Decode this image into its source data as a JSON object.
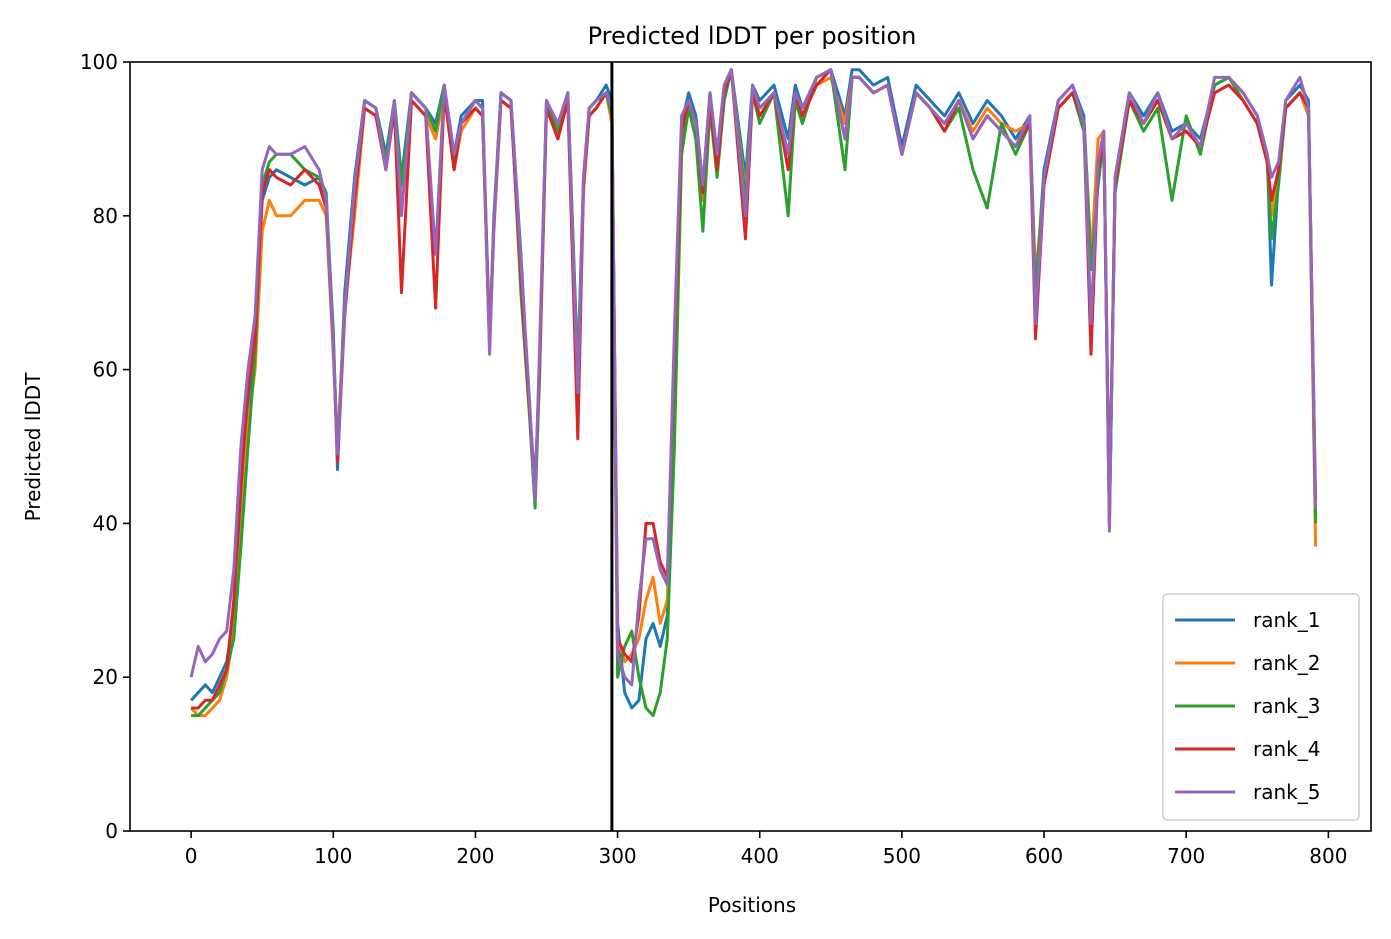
{
  "chart_data": {
    "type": "line",
    "title": "Predicted lDDT per position",
    "xlabel": "Positions",
    "ylabel": "Predicted lDDT",
    "xlim": [
      -43,
      830
    ],
    "ylim": [
      0,
      100
    ],
    "x_ticks": [
      0,
      100,
      200,
      300,
      400,
      500,
      600,
      700,
      800
    ],
    "y_ticks": [
      0,
      20,
      40,
      60,
      80,
      100
    ],
    "grid": false,
    "legend_position": "lower-right",
    "chain_break": 296,
    "colors": {
      "rank_1": "#1f77b4",
      "rank_2": "#ff7f0e",
      "rank_3": "#2ca02c",
      "rank_4": "#d62728",
      "rank_5": "#9467bd",
      "chain_break": "#000000"
    },
    "series": [
      {
        "name": "rank_1",
        "x": [
          0,
          5,
          10,
          15,
          20,
          25,
          30,
          35,
          40,
          45,
          50,
          55,
          60,
          70,
          80,
          90,
          95,
          100,
          103,
          108,
          115,
          122,
          130,
          137,
          143,
          148,
          155,
          165,
          172,
          178,
          185,
          190,
          200,
          205,
          210,
          213,
          218,
          225,
          232,
          238,
          242,
          245,
          250,
          258,
          265,
          272,
          276,
          280,
          285,
          292,
          296,
          300,
          305,
          310,
          315,
          320,
          325,
          330,
          335,
          340,
          345,
          350,
          355,
          360,
          365,
          370,
          375,
          380,
          390,
          395,
          400,
          410,
          420,
          425,
          430,
          440,
          450,
          460,
          465,
          470,
          480,
          490,
          500,
          510,
          520,
          530,
          540,
          550,
          560,
          570,
          580,
          590,
          594,
          600,
          610,
          620,
          628,
          633,
          638,
          642,
          646,
          650,
          660,
          670,
          680,
          690,
          700,
          710,
          720,
          730,
          740,
          750,
          757,
          760,
          765,
          770,
          780,
          786,
          791
        ],
        "y": [
          17,
          18,
          19,
          18,
          20,
          22,
          28,
          40,
          55,
          65,
          82,
          85,
          86,
          85,
          84,
          85,
          82,
          65,
          47,
          70,
          85,
          95,
          94,
          88,
          95,
          85,
          96,
          94,
          92,
          97,
          88,
          93,
          95,
          95,
          63,
          80,
          96,
          95,
          75,
          55,
          45,
          60,
          95,
          91,
          96,
          60,
          85,
          94,
          95,
          97,
          95,
          27,
          18,
          16,
          17,
          25,
          27,
          24,
          28,
          60,
          92,
          96,
          93,
          84,
          96,
          88,
          97,
          99,
          85,
          97,
          95,
          97,
          90,
          97,
          94,
          98,
          99,
          93,
          99,
          99,
          97,
          98,
          89,
          97,
          95,
          93,
          96,
          92,
          95,
          93,
          90,
          93,
          70,
          86,
          95,
          97,
          93,
          75,
          85,
          91,
          40,
          85,
          96,
          93,
          96,
          91,
          92,
          90,
          97,
          98,
          96,
          93,
          88,
          71,
          85,
          95,
          97,
          95,
          40
        ]
      },
      {
        "name": "rank_2",
        "x": [
          0,
          5,
          10,
          15,
          20,
          25,
          30,
          35,
          40,
          45,
          50,
          55,
          60,
          70,
          80,
          90,
          95,
          100,
          103,
          108,
          115,
          122,
          130,
          137,
          143,
          148,
          155,
          165,
          172,
          178,
          185,
          190,
          200,
          205,
          210,
          213,
          218,
          225,
          232,
          238,
          242,
          245,
          250,
          258,
          265,
          272,
          276,
          280,
          285,
          292,
          296,
          300,
          305,
          310,
          315,
          320,
          325,
          330,
          335,
          340,
          345,
          350,
          355,
          360,
          365,
          370,
          375,
          380,
          390,
          395,
          400,
          410,
          420,
          425,
          430,
          440,
          450,
          460,
          465,
          470,
          480,
          490,
          500,
          510,
          520,
          530,
          540,
          550,
          560,
          570,
          580,
          590,
          594,
          600,
          610,
          620,
          628,
          633,
          638,
          642,
          646,
          650,
          660,
          670,
          680,
          690,
          700,
          710,
          720,
          730,
          740,
          750,
          757,
          760,
          765,
          770,
          780,
          786,
          791
        ],
        "y": [
          16,
          15,
          15,
          16,
          17,
          20,
          26,
          38,
          53,
          60,
          78,
          82,
          80,
          80,
          82,
          82,
          80,
          62,
          50,
          68,
          80,
          94,
          93,
          86,
          94,
          83,
          95,
          93,
          90,
          96,
          86,
          91,
          94,
          93,
          65,
          78,
          95,
          94,
          73,
          55,
          44,
          58,
          94,
          90,
          95,
          58,
          83,
          93,
          94,
          96,
          92,
          25,
          22,
          23,
          25,
          30,
          33,
          27,
          30,
          55,
          90,
          95,
          92,
          82,
          95,
          87,
          96,
          99,
          83,
          96,
          94,
          96,
          88,
          96,
          93,
          97,
          98,
          92,
          98,
          98,
          96,
          97,
          88,
          96,
          94,
          92,
          95,
          91,
          94,
          92,
          91,
          92,
          72,
          84,
          94,
          96,
          92,
          74,
          90,
          91,
          42,
          84,
          95,
          92,
          95,
          90,
          91,
          89,
          96,
          97,
          95,
          92,
          87,
          80,
          86,
          94,
          96,
          93,
          37
        ]
      },
      {
        "name": "rank_3",
        "x": [
          0,
          5,
          10,
          15,
          20,
          25,
          30,
          35,
          40,
          45,
          50,
          55,
          60,
          70,
          80,
          90,
          95,
          100,
          103,
          108,
          115,
          122,
          130,
          137,
          143,
          148,
          155,
          165,
          172,
          178,
          185,
          190,
          200,
          205,
          210,
          213,
          218,
          225,
          232,
          238,
          242,
          245,
          250,
          258,
          265,
          272,
          276,
          280,
          285,
          292,
          296,
          300,
          305,
          310,
          315,
          320,
          325,
          330,
          335,
          340,
          345,
          350,
          355,
          360,
          365,
          370,
          375,
          380,
          390,
          395,
          400,
          410,
          420,
          425,
          430,
          440,
          450,
          460,
          465,
          470,
          480,
          490,
          500,
          510,
          520,
          530,
          540,
          550,
          560,
          570,
          580,
          590,
          594,
          600,
          610,
          620,
          628,
          633,
          638,
          642,
          646,
          650,
          660,
          670,
          680,
          690,
          700,
          710,
          720,
          730,
          740,
          750,
          757,
          760,
          765,
          770,
          780,
          786,
          791
        ],
        "y": [
          15,
          15,
          16,
          17,
          18,
          21,
          25,
          37,
          50,
          62,
          84,
          87,
          88,
          88,
          86,
          85,
          83,
          64,
          49,
          69,
          83,
          95,
          94,
          87,
          95,
          84,
          96,
          94,
          91,
          97,
          87,
          92,
          95,
          94,
          64,
          79,
          96,
          95,
          70,
          54,
          42,
          59,
          95,
          91,
          96,
          59,
          84,
          94,
          95,
          96,
          93,
          20,
          24,
          26,
          20,
          16,
          15,
          18,
          25,
          50,
          88,
          94,
          90,
          78,
          94,
          85,
          95,
          99,
          82,
          96,
          92,
          96,
          80,
          95,
          92,
          98,
          99,
          86,
          98,
          98,
          96,
          97,
          88,
          96,
          94,
          91,
          94,
          86,
          81,
          92,
          88,
          92,
          70,
          85,
          94,
          96,
          91,
          73,
          84,
          90,
          42,
          83,
          95,
          91,
          94,
          82,
          93,
          88,
          97,
          98,
          95,
          92,
          87,
          77,
          84,
          94,
          96,
          94,
          40
        ]
      },
      {
        "name": "rank_4",
        "x": [
          0,
          5,
          10,
          15,
          20,
          25,
          30,
          35,
          40,
          45,
          50,
          55,
          60,
          70,
          80,
          90,
          95,
          100,
          103,
          108,
          115,
          122,
          130,
          137,
          143,
          148,
          155,
          165,
          172,
          178,
          185,
          190,
          200,
          205,
          210,
          213,
          218,
          225,
          232,
          238,
          242,
          245,
          250,
          258,
          265,
          272,
          276,
          280,
          285,
          292,
          296,
          300,
          305,
          310,
          315,
          320,
          325,
          330,
          335,
          340,
          345,
          350,
          355,
          360,
          365,
          370,
          375,
          380,
          390,
          395,
          400,
          410,
          420,
          425,
          430,
          440,
          450,
          460,
          465,
          470,
          480,
          490,
          500,
          510,
          520,
          530,
          540,
          550,
          560,
          570,
          580,
          590,
          594,
          600,
          610,
          620,
          628,
          633,
          638,
          642,
          646,
          650,
          660,
          670,
          680,
          690,
          700,
          710,
          720,
          730,
          740,
          750,
          757,
          760,
          765,
          770,
          780,
          786,
          791
        ],
        "y": [
          16,
          16,
          17,
          17,
          19,
          21,
          30,
          45,
          57,
          64,
          83,
          86,
          85,
          84,
          86,
          84,
          81,
          63,
          48,
          67,
          82,
          94,
          93,
          86,
          94,
          70,
          95,
          93,
          68,
          96,
          86,
          92,
          94,
          93,
          63,
          79,
          95,
          94,
          72,
          55,
          44,
          60,
          94,
          90,
          95,
          51,
          84,
          93,
          94,
          96,
          94,
          25,
          23,
          22,
          28,
          40,
          40,
          35,
          33,
          62,
          91,
          95,
          92,
          83,
          95,
          86,
          96,
          99,
          77,
          96,
          93,
          96,
          86,
          96,
          93,
          97,
          99,
          90,
          98,
          98,
          96,
          97,
          88,
          96,
          94,
          91,
          95,
          90,
          93,
          91,
          89,
          92,
          64,
          84,
          94,
          96,
          92,
          62,
          86,
          90,
          40,
          84,
          95,
          92,
          95,
          90,
          91,
          89,
          96,
          97,
          95,
          92,
          87,
          82,
          86,
          94,
          96,
          94,
          43
        ]
      },
      {
        "name": "rank_5",
        "x": [
          0,
          5,
          10,
          15,
          20,
          25,
          30,
          35,
          40,
          45,
          50,
          55,
          60,
          70,
          80,
          90,
          95,
          100,
          103,
          108,
          115,
          122,
          130,
          137,
          143,
          148,
          155,
          165,
          172,
          178,
          185,
          190,
          200,
          205,
          210,
          213,
          218,
          225,
          232,
          238,
          242,
          245,
          250,
          258,
          265,
          272,
          276,
          280,
          285,
          292,
          296,
          300,
          305,
          310,
          315,
          320,
          325,
          330,
          335,
          340,
          345,
          350,
          355,
          360,
          365,
          370,
          375,
          380,
          390,
          395,
          400,
          410,
          420,
          425,
          430,
          440,
          450,
          460,
          465,
          470,
          480,
          490,
          500,
          510,
          520,
          530,
          540,
          550,
          560,
          570,
          580,
          590,
          594,
          600,
          610,
          620,
          628,
          633,
          638,
          642,
          646,
          650,
          660,
          670,
          680,
          690,
          700,
          710,
          720,
          730,
          740,
          750,
          757,
          760,
          765,
          770,
          780,
          786,
          791
        ],
        "y": [
          20,
          24,
          22,
          23,
          25,
          26,
          34,
          50,
          60,
          67,
          86,
          89,
          88,
          88,
          89,
          86,
          82,
          63,
          49,
          68,
          84,
          95,
          94,
          86,
          95,
          80,
          96,
          94,
          75,
          97,
          88,
          92,
          95,
          94,
          62,
          79,
          96,
          95,
          74,
          56,
          43,
          62,
          95,
          92,
          96,
          57,
          85,
          94,
          95,
          96,
          94,
          23,
          20,
          19,
          30,
          38,
          38,
          34,
          32,
          65,
          93,
          95,
          92,
          84,
          96,
          88,
          97,
          99,
          80,
          97,
          94,
          96,
          88,
          96,
          94,
          98,
          99,
          90,
          98,
          98,
          96,
          97,
          88,
          96,
          94,
          92,
          95,
          90,
          93,
          91,
          89,
          93,
          66,
          85,
          95,
          97,
          92,
          66,
          87,
          91,
          39,
          85,
          96,
          92,
          96,
          90,
          92,
          89,
          98,
          98,
          96,
          93,
          88,
          85,
          87,
          95,
          98,
          94,
          42
        ]
      }
    ]
  }
}
